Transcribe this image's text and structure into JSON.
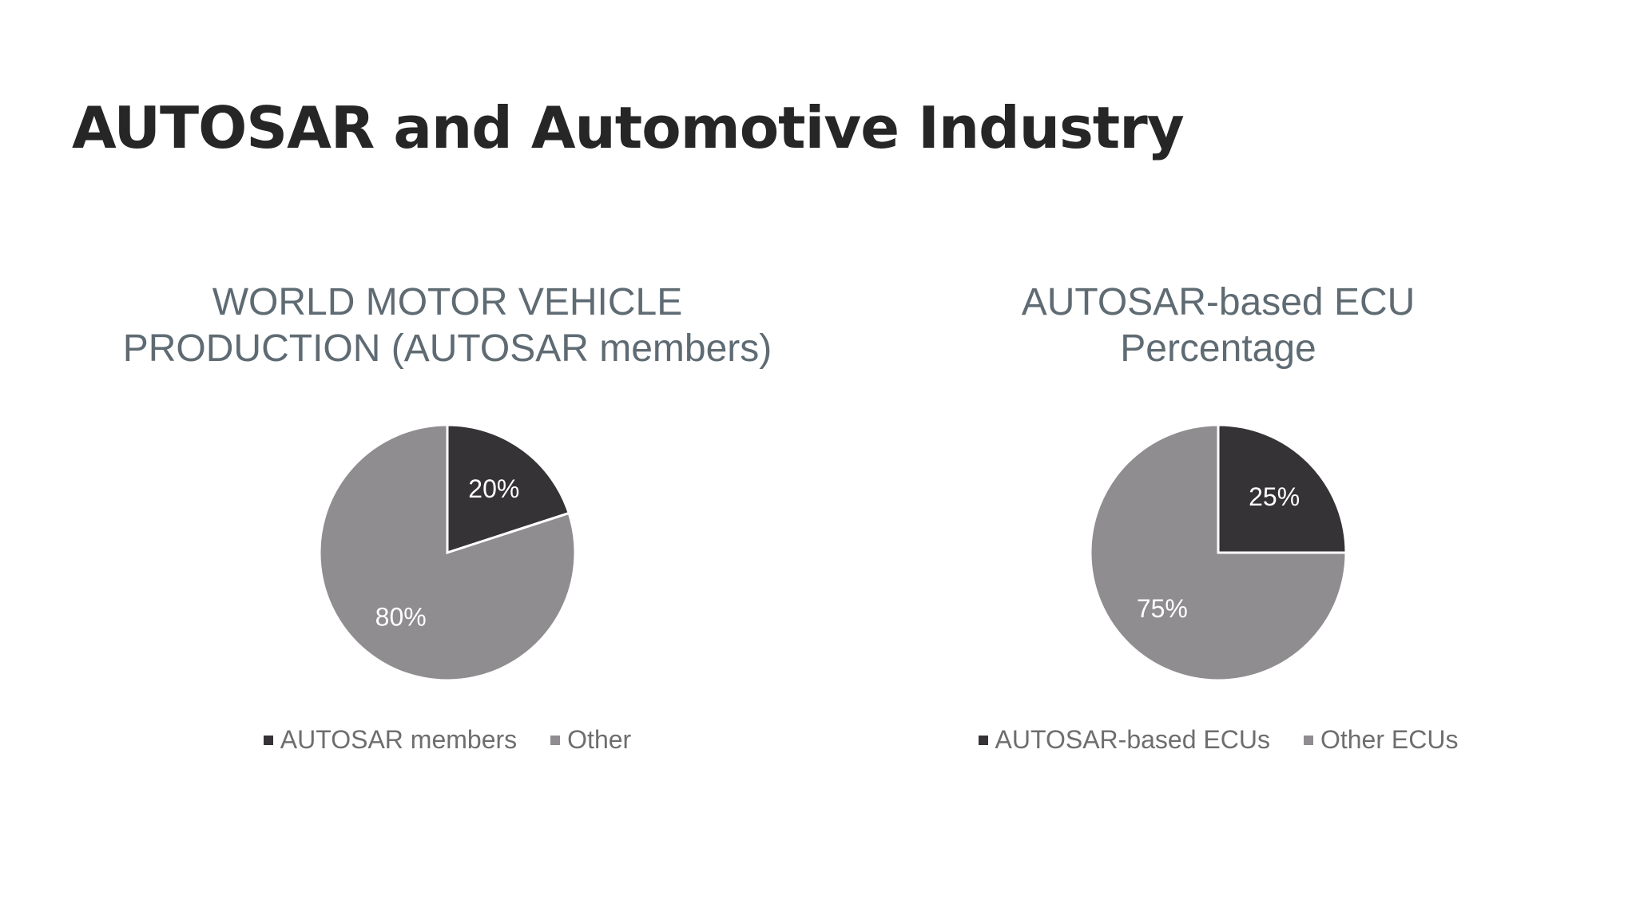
{
  "slide": {
    "title": "AUTOSAR and Automotive Industry"
  },
  "colors": {
    "dark": "#353335",
    "light": "#8f8d8f",
    "border": "#ffffff"
  },
  "chart_data": [
    {
      "type": "pie",
      "title_lines": [
        "WORLD MOTOR VEHICLE",
        "PRODUCTION (AUTOSAR members)"
      ],
      "slices": [
        {
          "label": "AUTOSAR members",
          "value": 20,
          "display": "20%",
          "color": "#353335"
        },
        {
          "label": "Other",
          "value": 80,
          "display": "80%",
          "color": "#8f8d8f"
        }
      ],
      "legend_position": "bottom"
    },
    {
      "type": "pie",
      "title_lines": [
        "AUTOSAR-based ECU",
        "Percentage"
      ],
      "slices": [
        {
          "label": "AUTOSAR-based ECUs",
          "value": 25,
          "display": "25%",
          "color": "#353335"
        },
        {
          "label": "Other ECUs",
          "value": 75,
          "display": "75%",
          "color": "#8f8d8f"
        }
      ],
      "legend_position": "bottom"
    }
  ]
}
